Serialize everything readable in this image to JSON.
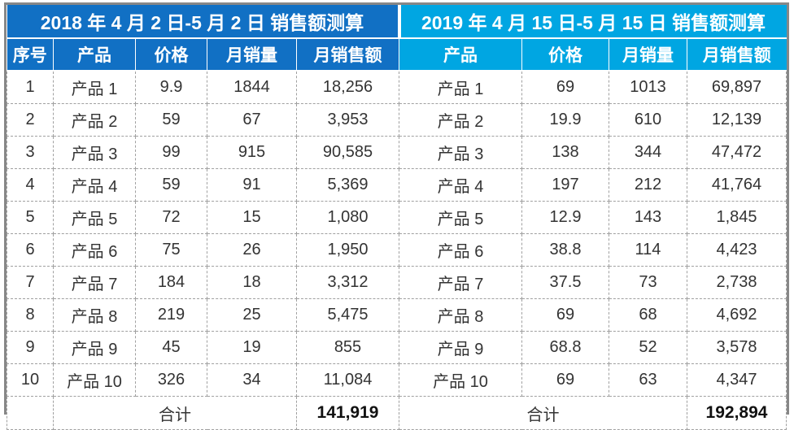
{
  "tables": {
    "left": {
      "title": "2018 年 4 月 2 日-5 月 2 日 销售额测算",
      "accent_color": "#1170C4",
      "headers": [
        "序号",
        "产品",
        "价格",
        "月销量",
        "月销售额"
      ],
      "total_label": "合计",
      "total_value": "141,919"
    },
    "right": {
      "title": "2019 年 4 月 15 日-5 月 15 日 销售额测算",
      "accent_color": "#00A6E2",
      "headers": [
        "产品",
        "价格",
        "月销量",
        "月销售额"
      ],
      "total_label": "合计",
      "total_value": "192,894"
    }
  },
  "row_cell_names": [
    "cell-index",
    "cell-product-2018",
    "cell-price-2018",
    "cell-monthly-sales-2018",
    "cell-monthly-revenue-2018",
    "cell-product-2019",
    "cell-price-2019",
    "cell-monthly-sales-2019",
    "cell-monthly-revenue-2019"
  ],
  "rows": [
    [
      "1",
      "产品 1",
      "9.9",
      "1844",
      "18,256",
      "产品 1",
      "69",
      "1013",
      "69,897"
    ],
    [
      "2",
      "产品 2",
      "59",
      "67",
      "3,953",
      "产品 2",
      "19.9",
      "610",
      "12,139"
    ],
    [
      "3",
      "产品 3",
      "99",
      "915",
      "90,585",
      "产品 3",
      "138",
      "344",
      "47,472"
    ],
    [
      "4",
      "产品 4",
      "59",
      "91",
      "5,369",
      "产品 4",
      "197",
      "212",
      "41,764"
    ],
    [
      "5",
      "产品 5",
      "72",
      "15",
      "1,080",
      "产品 5",
      "12.9",
      "143",
      "1,845"
    ],
    [
      "6",
      "产品 6",
      "75",
      "26",
      "1,950",
      "产品 6",
      "38.8",
      "114",
      "4,423"
    ],
    [
      "7",
      "产品 7",
      "184",
      "18",
      "3,312",
      "产品 7",
      "37.5",
      "73",
      "2,738"
    ],
    [
      "8",
      "产品 8",
      "219",
      "25",
      "5,475",
      "产品 8",
      "69",
      "68",
      "4,692"
    ],
    [
      "9",
      "产品 9",
      "45",
      "19",
      "855",
      "产品 9",
      "68.8",
      "52",
      "3,578"
    ],
    [
      "10",
      "产品 10",
      "326",
      "34",
      "11,084",
      "产品 10",
      "69",
      "63",
      "4,347"
    ]
  ]
}
